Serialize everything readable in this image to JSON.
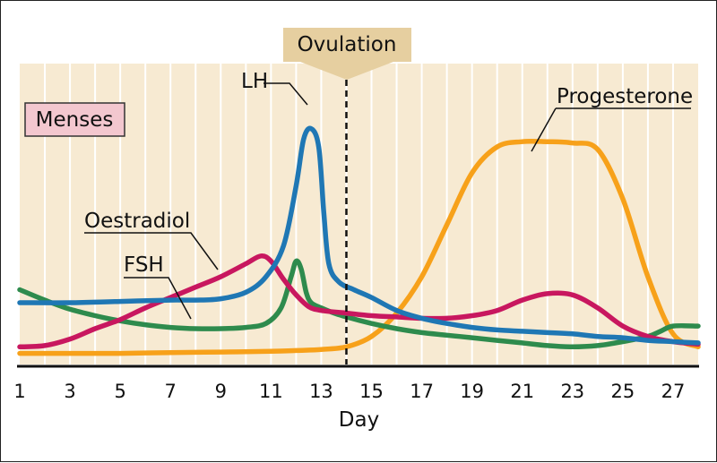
{
  "chart_data": {
    "type": "line",
    "xlabel": "Day",
    "ylabel": "",
    "x_ticks": [
      "1",
      "3",
      "5",
      "7",
      "9",
      "11",
      "13",
      "15",
      "17",
      "19",
      "21",
      "23",
      "25",
      "27"
    ],
    "xlim": [
      1,
      28
    ],
    "ylim": [
      0,
      100
    ],
    "grid": "vertical",
    "annotations": {
      "ovulation": "Ovulation",
      "ovulation_day": 14,
      "menses": "Menses"
    },
    "colors": {
      "background": "#f7ead2",
      "grid": "#ffffff",
      "ovulation_box": "#e6cfa0",
      "menses_box": "#f3c7cf",
      "menses_border": "#333333"
    },
    "series": [
      {
        "name": "LH",
        "color": "#1f77b4",
        "points": [
          [
            1,
            20
          ],
          [
            3,
            20
          ],
          [
            5,
            20.5
          ],
          [
            7,
            21
          ],
          [
            8,
            21
          ],
          [
            9,
            21.5
          ],
          [
            10,
            24
          ],
          [
            10.8,
            30
          ],
          [
            11.5,
            42
          ],
          [
            12,
            65
          ],
          [
            12.3,
            83
          ],
          [
            12.6,
            87
          ],
          [
            12.9,
            80
          ],
          [
            13.1,
            55
          ],
          [
            13.3,
            35
          ],
          [
            13.7,
            28
          ],
          [
            14.3,
            25
          ],
          [
            15,
            22
          ],
          [
            16,
            17
          ],
          [
            17,
            14
          ],
          [
            18,
            12
          ],
          [
            19,
            10.5
          ],
          [
            20,
            9.5
          ],
          [
            21,
            9
          ],
          [
            22,
            8.5
          ],
          [
            23,
            8
          ],
          [
            24,
            7
          ],
          [
            25,
            6.5
          ],
          [
            26,
            5.5
          ],
          [
            27,
            5
          ],
          [
            28,
            4.5
          ]
        ]
      },
      {
        "name": "Oestradiol",
        "color": "#c8175f",
        "points": [
          [
            1,
            3
          ],
          [
            2,
            3.5
          ],
          [
            3,
            6
          ],
          [
            4,
            10
          ],
          [
            5,
            13.5
          ],
          [
            6,
            18
          ],
          [
            7,
            22
          ],
          [
            8,
            26
          ],
          [
            9,
            30
          ],
          [
            10,
            35
          ],
          [
            10.6,
            38
          ],
          [
            11,
            36
          ],
          [
            11.5,
            29
          ],
          [
            12,
            23
          ],
          [
            12.5,
            18.5
          ],
          [
            13,
            17
          ],
          [
            14,
            16
          ],
          [
            15,
            15
          ],
          [
            16,
            14.5
          ],
          [
            17,
            14
          ],
          [
            18,
            14
          ],
          [
            19,
            15
          ],
          [
            20,
            17
          ],
          [
            21,
            21
          ],
          [
            22,
            23.5
          ],
          [
            23,
            23
          ],
          [
            24,
            18
          ],
          [
            25,
            11
          ],
          [
            26,
            7
          ],
          [
            27,
            5
          ],
          [
            28,
            4
          ]
        ]
      },
      {
        "name": "FSH",
        "color": "#2e8b4d",
        "points": [
          [
            1,
            25
          ],
          [
            2,
            21
          ],
          [
            3,
            17.5
          ],
          [
            4,
            15
          ],
          [
            5,
            13
          ],
          [
            6,
            11.5
          ],
          [
            7,
            10.5
          ],
          [
            8,
            10
          ],
          [
            9,
            10
          ],
          [
            10,
            10.5
          ],
          [
            10.8,
            12
          ],
          [
            11.4,
            18
          ],
          [
            11.8,
            30
          ],
          [
            12,
            36
          ],
          [
            12.2,
            33
          ],
          [
            12.4,
            24
          ],
          [
            12.6,
            20
          ],
          [
            13,
            18
          ],
          [
            13.5,
            16
          ],
          [
            14,
            14.5
          ],
          [
            15,
            12
          ],
          [
            16,
            10
          ],
          [
            17,
            8.5
          ],
          [
            18,
            7.5
          ],
          [
            19,
            6.5
          ],
          [
            20,
            5.5
          ],
          [
            21,
            4.5
          ],
          [
            22,
            3.5
          ],
          [
            23,
            3
          ],
          [
            24,
            3.5
          ],
          [
            25,
            5
          ],
          [
            26,
            7
          ],
          [
            26.5,
            9
          ],
          [
            27,
            11
          ],
          [
            28,
            11
          ]
        ]
      },
      {
        "name": "Progesterone",
        "color": "#f7a11a",
        "points": [
          [
            1,
            0.5
          ],
          [
            3,
            0.5
          ],
          [
            5,
            0.5
          ],
          [
            7,
            0.8
          ],
          [
            9,
            1
          ],
          [
            11,
            1.3
          ],
          [
            12,
            1.6
          ],
          [
            13,
            2
          ],
          [
            14,
            3
          ],
          [
            15,
            7
          ],
          [
            16,
            16
          ],
          [
            17,
            30
          ],
          [
            18,
            50
          ],
          [
            19,
            70
          ],
          [
            20,
            80
          ],
          [
            21,
            82
          ],
          [
            22,
            82
          ],
          [
            23,
            81.5
          ],
          [
            24,
            79
          ],
          [
            25,
            60
          ],
          [
            26,
            30
          ],
          [
            27,
            8
          ],
          [
            28,
            3
          ]
        ]
      }
    ]
  }
}
